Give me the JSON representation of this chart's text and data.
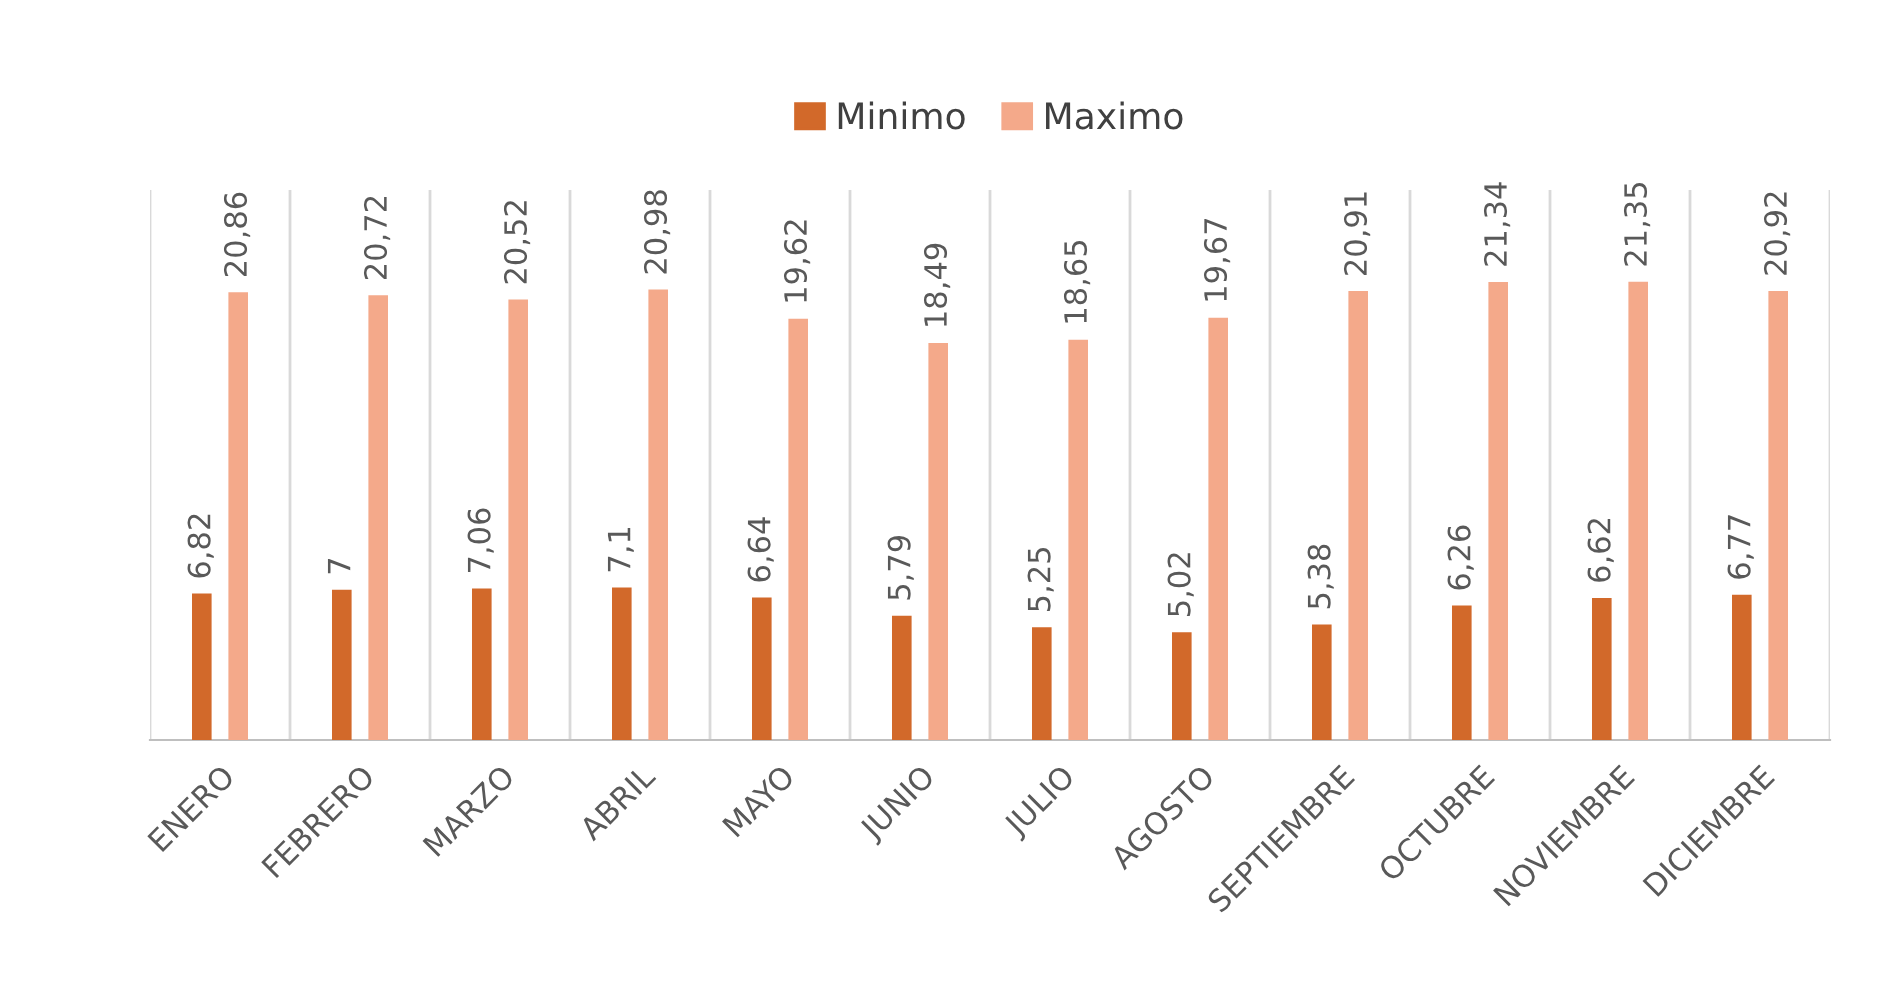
{
  "chart_data": {
    "type": "bar",
    "categories": [
      "ENERO",
      "FEBRERO",
      "MARZO",
      "ABRIL",
      "MAYO",
      "JUNIO",
      "JULIO",
      "AGOSTO",
      "SEPTIEMBRE",
      "OCTUBRE",
      "NOVIEMBRE",
      "DICIEMBRE"
    ],
    "series": [
      {
        "name": "Minimo",
        "color": "#d2692a",
        "values": [
          6.82,
          7,
          7.06,
          7.1,
          6.64,
          5.79,
          5.25,
          5.02,
          5.38,
          6.26,
          6.62,
          6.77
        ],
        "value_labels": [
          "6,82",
          "7",
          "7,06",
          "7,1",
          "6,64",
          "5,79",
          "5,25",
          "5,02",
          "5,38",
          "6,26",
          "6,62",
          "6,77"
        ]
      },
      {
        "name": "Maximo",
        "color": "#f4a98a",
        "values": [
          20.86,
          20.72,
          20.52,
          20.98,
          19.62,
          18.49,
          18.65,
          19.67,
          20.91,
          21.34,
          21.35,
          20.92
        ],
        "value_labels": [
          "20,86",
          "20,72",
          "20,52",
          "20,98",
          "19,62",
          "18,49",
          "18,65",
          "19,67",
          "20,91",
          "21,34",
          "21,35",
          "20,92"
        ]
      }
    ],
    "grid": "x",
    "legend": "top",
    "tick_labels": "x"
  }
}
